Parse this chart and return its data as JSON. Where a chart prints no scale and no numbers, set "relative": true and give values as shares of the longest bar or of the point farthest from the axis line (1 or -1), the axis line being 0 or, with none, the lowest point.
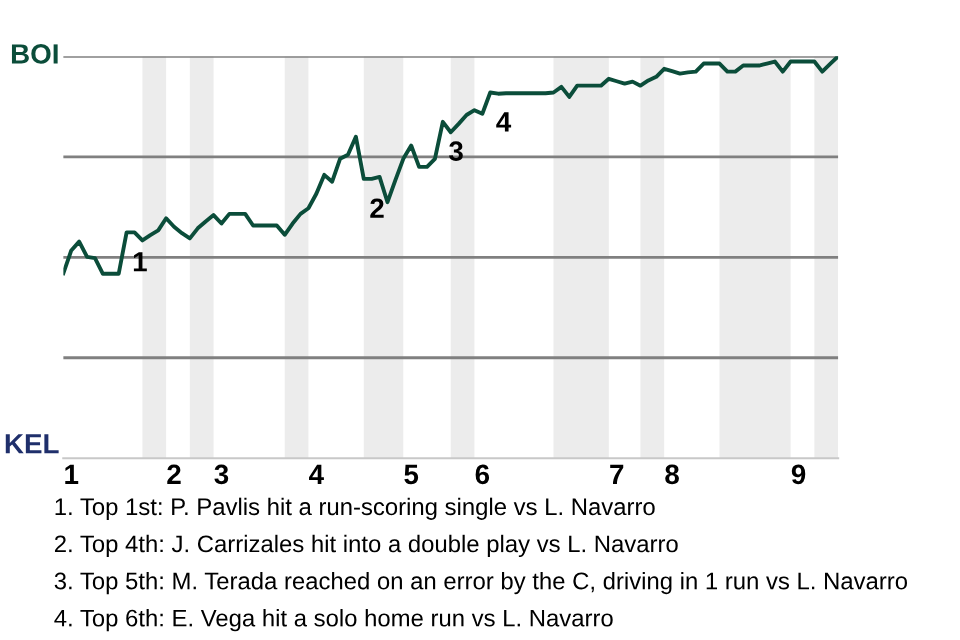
{
  "chart_data": {
    "type": "line",
    "relative": true,
    "categories": [
      null,
      "1",
      null,
      null,
      null,
      null,
      null,
      null,
      null,
      null,
      null,
      null,
      null,
      null,
      "2",
      null,
      null,
      null,
      null,
      null,
      "3",
      null,
      null,
      null,
      null,
      null,
      null,
      null,
      null,
      null,
      null,
      null,
      "4",
      null,
      null,
      null,
      null,
      null,
      null,
      null,
      null,
      null,
      null,
      null,
      "5",
      null,
      null,
      null,
      null,
      null,
      null,
      null,
      null,
      "6",
      null,
      null,
      null,
      null,
      null,
      null,
      null,
      null,
      null,
      null,
      null,
      null,
      null,
      null,
      null,
      null,
      "7",
      null,
      null,
      null,
      null,
      null,
      null,
      "8",
      null,
      null,
      null,
      null,
      null,
      null,
      null,
      null,
      null,
      null,
      null,
      null,
      null,
      null,
      null,
      "9",
      null,
      null,
      null,
      null,
      null
    ],
    "series": [
      {
        "color": "#0b4d3a",
        "values": [
          0.46,
          0.517,
          0.539,
          0.501,
          0.498,
          0.459,
          0.459,
          0.459,
          0.562,
          0.562,
          0.542,
          0.555,
          0.567,
          0.597,
          0.576,
          0.56,
          0.547,
          0.572,
          0.589,
          0.605,
          0.584,
          0.608,
          0.608,
          0.608,
          0.579,
          0.579,
          0.579,
          0.579,
          0.556,
          0.584,
          0.608,
          0.622,
          0.658,
          0.705,
          0.688,
          0.745,
          0.755,
          0.8,
          0.695,
          0.695,
          0.7,
          0.637,
          0.692,
          0.745,
          0.778,
          0.725,
          0.725,
          0.745,
          0.837,
          0.811,
          0.832,
          0.854,
          0.866,
          0.857,
          0.91,
          0.907,
          0.908,
          0.908,
          0.908,
          0.908,
          0.908,
          0.908,
          0.91,
          0.924,
          0.899,
          0.927,
          0.927,
          0.927,
          0.927,
          0.944,
          0.938,
          0.932,
          0.937,
          0.927,
          0.94,
          0.949,
          0.969,
          0.963,
          0.957,
          0.96,
          0.962,
          0.982,
          0.982,
          0.982,
          0.962,
          0.962,
          0.977,
          0.977,
          0.977,
          0.982,
          0.987,
          0.962,
          0.987,
          0.987,
          0.987,
          0.987,
          0.962,
          0.981,
          1
        ]
      }
    ],
    "grid": "y",
    "line_style": "solid",
    "marker": "none",
    "annotations": [
      {
        "text": "1",
        "y": 0.562
      },
      {
        "text": "2",
        "y": 0.695
      },
      {
        "text": "3",
        "y": 0.837
      },
      {
        "text": "4",
        "y": 0.91
      },
      "BOI",
      "KEL",
      "1. Top 1st: P. Pavlis hit a run-scoring single vs L. Navarro",
      "2. Top 4th: J. Carrizales hit into a double play vs L. Navarro",
      "3. Top 5th: M. Terada reached on an error by the C, driving in 1 run vs L. Navarro",
      "4. Top 6th: E. Vega hit a solo home run vs L. Navarro"
    ]
  }
}
